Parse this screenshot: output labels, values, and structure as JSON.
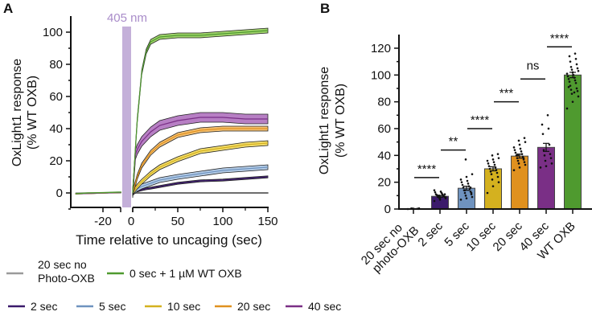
{
  "chart_data": [
    {
      "panel": "A",
      "type": "line",
      "xlabel": "Time relative to uncaging (sec)",
      "ylabel": [
        "OxLight1 response",
        "(% WT OXB)"
      ],
      "xlim": [
        -38,
        150
      ],
      "ylim": [
        -10,
        105
      ],
      "xticks": [
        -20,
        0,
        50,
        100,
        150
      ],
      "yticks": [
        0,
        20,
        40,
        60,
        80,
        100
      ],
      "annotation": "405 nm",
      "annotation_color": "#c4b0d9",
      "baseline_x": [
        -38,
        -30,
        -20,
        -10,
        -8
      ],
      "x": [
        0,
        3,
        5,
        10,
        15,
        20,
        30,
        50,
        75,
        100,
        125,
        150
      ],
      "series": [
        {
          "name": "20 sec no Photo-OXB",
          "legend": [
            "20 sec no",
            "Photo-OXB"
          ],
          "color": "#9a9a9a",
          "fill": "#d0d0d0",
          "sem": 0.3,
          "baseline": [
            0,
            0,
            0,
            0,
            0
          ],
          "values": [
            0,
            0,
            0,
            0,
            0,
            0,
            0,
            0,
            0,
            0,
            0,
            0
          ]
        },
        {
          "name": "0 sec + 1 µM WT OXB",
          "legend": [
            "0 sec + 1 µM WT OXB"
          ],
          "color": "#4f9a2f",
          "fill": "#9fd36a",
          "sem": 1.5,
          "baseline": [
            -0.5,
            0,
            0.2,
            0.5,
            0.5
          ],
          "values": [
            0,
            28,
            45,
            75,
            88,
            94,
            97,
            98,
            98,
            99,
            100,
            101
          ]
        },
        {
          "name": "2 sec",
          "legend": [
            "2 sec"
          ],
          "color": "#3b1a6b",
          "fill": "#6a4f97",
          "sem": 0.6,
          "baseline": [
            -0.5,
            -0.3,
            0,
            0.3,
            0.4
          ],
          "values": [
            0,
            0.8,
            1.2,
            2,
            2.6,
            3,
            4,
            6,
            7.5,
            8,
            9,
            10
          ]
        },
        {
          "name": "5 sec",
          "legend": [
            "5 sec"
          ],
          "color": "#6f93bf",
          "fill": "#b3cbe6",
          "sem": 1.5,
          "baseline": [
            -0.5,
            -0.3,
            0,
            0.3,
            0.4
          ],
          "values": [
            0,
            1.5,
            2.5,
            4,
            5,
            6,
            8,
            10,
            12,
            14,
            15,
            16
          ]
        },
        {
          "name": "10 sec",
          "legend": [
            "10 sec"
          ],
          "color": "#d4b11f",
          "fill": "#f2dc6a",
          "sem": 1.5,
          "baseline": [
            -0.5,
            -0.3,
            0,
            0.3,
            0.4
          ],
          "values": [
            0,
            2.5,
            4,
            7,
            9.5,
            12,
            16,
            21,
            26,
            28,
            30,
            31
          ]
        },
        {
          "name": "20 sec",
          "legend": [
            "20 sec"
          ],
          "color": "#e0911f",
          "fill": "#f5c070",
          "sem": 1.5,
          "baseline": [
            -0.5,
            -0.3,
            0,
            0.3,
            0.4
          ],
          "values": [
            0,
            6,
            10,
            17,
            21,
            25,
            30,
            36,
            39,
            40,
            40,
            40
          ]
        },
        {
          "name": "40 sec",
          "legend": [
            "40 sec"
          ],
          "color": "#7a2f86",
          "fill": "#b77fc4",
          "sem": 3,
          "baseline": [
            -0.5,
            -0.3,
            0,
            0.3,
            0.4
          ],
          "values": [
            0,
            24,
            27,
            32,
            35,
            38,
            42,
            45,
            47,
            47,
            46,
            46
          ]
        }
      ]
    },
    {
      "panel": "B",
      "type": "bar",
      "ylabel": [
        "OxLight1 response",
        "(% WT OXB)"
      ],
      "ylim": [
        0,
        130
      ],
      "yticks": [
        0,
        20,
        40,
        60,
        80,
        100,
        120
      ],
      "categories": [
        [
          "20 sec no",
          "photo-OXB"
        ],
        [
          "2 sec"
        ],
        [
          "5 sec"
        ],
        [
          "10 sec"
        ],
        [
          "20 sec"
        ],
        [
          "40 sec"
        ],
        [
          "WT OXB"
        ]
      ],
      "colors": [
        "#9a9a9a",
        "#3b1a6b",
        "#6f93bf",
        "#d4b11f",
        "#e0911f",
        "#7a2f86",
        "#4f9a2f"
      ],
      "values": [
        0.2,
        9.5,
        15.5,
        30,
        39.5,
        46,
        100
      ],
      "sem": [
        0.1,
        0.7,
        1.5,
        1.5,
        1.5,
        3,
        2
      ],
      "points": [
        [
          0,
          0.3,
          0.5,
          0.2,
          0.1,
          0.4,
          0.2,
          0.3
        ],
        [
          6,
          7,
          8,
          8.5,
          9,
          9,
          9.5,
          10,
          10,
          10.5,
          11,
          11,
          12,
          12.5,
          13,
          14,
          8,
          9,
          10,
          11
        ],
        [
          7,
          8,
          9,
          10,
          11,
          12,
          13,
          14,
          15,
          16,
          17,
          18,
          19,
          20,
          21,
          22,
          24,
          26,
          37,
          12,
          14,
          16
        ],
        [
          12,
          17,
          20,
          22,
          24,
          26,
          27,
          28,
          29,
          30,
          31,
          32,
          33,
          34,
          35,
          36,
          37,
          38,
          40,
          41
        ],
        [
          29,
          31,
          33,
          34,
          35,
          36,
          37,
          38,
          39,
          40,
          41,
          42,
          43,
          44,
          45,
          46,
          48,
          50,
          51,
          53,
          40,
          38
        ],
        [
          31,
          32,
          34,
          36,
          38,
          40,
          41,
          44,
          48,
          56,
          60,
          63,
          70
        ],
        [
          75,
          80,
          84,
          86,
          88,
          89,
          90,
          92,
          94,
          95,
          96,
          97,
          98,
          99,
          100,
          101,
          102,
          103,
          104,
          105,
          106,
          108,
          110,
          112,
          114,
          116,
          91,
          87
        ]
      ],
      "significance": [
        {
          "between": [
            0,
            1
          ],
          "y": 23.5,
          "label": "****"
        },
        {
          "between": [
            1,
            2
          ],
          "y": 44,
          "label": "**"
        },
        {
          "between": [
            2,
            3
          ],
          "y": 60,
          "label": "****"
        },
        {
          "between": [
            3,
            4
          ],
          "y": 80,
          "label": "***"
        },
        {
          "between": [
            4,
            5
          ],
          "y": 97,
          "label": "ns"
        },
        {
          "between": [
            5,
            6
          ],
          "y": 121,
          "label": "****"
        }
      ]
    }
  ],
  "panels": {
    "a": "A",
    "b": "B"
  }
}
